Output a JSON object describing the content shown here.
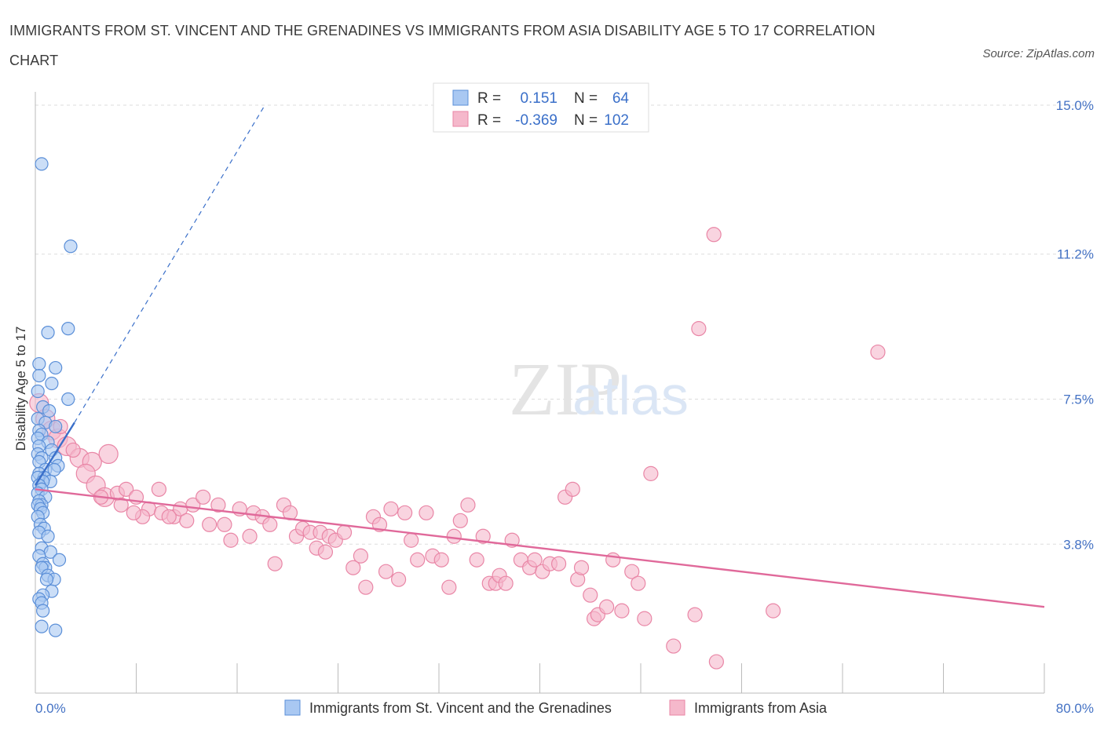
{
  "title": "IMMIGRANTS FROM ST. VINCENT AND THE GRENADINES VS IMMIGRANTS FROM ASIA DISABILITY AGE 5 TO 17 CORRELATION CHART",
  "source": "Source: ZipAtlas.com",
  "watermark": {
    "zip": "ZIP",
    "atlas": "atlas"
  },
  "colors": {
    "blue_fill": "#a9c8f2",
    "blue_stroke": "#5b8fd8",
    "blue_line": "#3a6fc9",
    "pink_fill": "#f5b8cb",
    "pink_stroke": "#e986a6",
    "pink_line": "#e0699a",
    "axis_label": "#4472c4",
    "grid": "#dddddd"
  },
  "legend": {
    "rows": [
      {
        "r_label": "R =",
        "r_value": "0.151",
        "n_label": "N =",
        "n_value": "64"
      },
      {
        "r_label": "R =",
        "r_value": "-0.369",
        "n_label": "N =",
        "n_value": "102"
      }
    ]
  },
  "bottom_legend": [
    "Immigrants from St. Vincent and the Grenadines",
    "Immigrants from Asia"
  ],
  "chart_data": {
    "type": "scatter",
    "ylabel": "Disability Age 5 to 17",
    "xlim": [
      0,
      80
    ],
    "ylim": [
      0,
      15
    ],
    "x_tick_labels": [
      "0.0%",
      "80.0%"
    ],
    "y_ticks": [
      3.8,
      7.5,
      11.2,
      15.0
    ],
    "y_tick_labels": [
      "3.8%",
      "7.5%",
      "11.2%",
      "15.0%"
    ],
    "grid": true,
    "legend_placement": "top-center",
    "series": [
      {
        "name": "Immigrants from St. Vincent and the Grenadines",
        "color": "blue",
        "trend": {
          "x0": 0,
          "y0": 5.3,
          "x1": 3.1,
          "y1": 6.9,
          "dashed_to": [
            18.2,
            15.0
          ]
        },
        "points": [
          [
            0.5,
            13.5
          ],
          [
            2.8,
            11.4
          ],
          [
            2.6,
            9.3
          ],
          [
            1.0,
            9.2
          ],
          [
            0.3,
            8.4
          ],
          [
            1.6,
            8.3
          ],
          [
            0.3,
            8.1
          ],
          [
            1.3,
            7.9
          ],
          [
            0.2,
            7.7
          ],
          [
            2.6,
            7.5
          ],
          [
            0.6,
            7.3
          ],
          [
            1.1,
            7.2
          ],
          [
            0.2,
            7.0
          ],
          [
            0.8,
            6.9
          ],
          [
            1.6,
            6.8
          ],
          [
            0.3,
            6.7
          ],
          [
            0.5,
            6.6
          ],
          [
            0.2,
            6.5
          ],
          [
            1.0,
            6.4
          ],
          [
            0.3,
            6.3
          ],
          [
            1.3,
            6.2
          ],
          [
            0.2,
            6.1
          ],
          [
            0.5,
            6.0
          ],
          [
            1.6,
            6.0
          ],
          [
            0.3,
            5.9
          ],
          [
            1.8,
            5.8
          ],
          [
            0.8,
            5.7
          ],
          [
            1.5,
            5.7
          ],
          [
            0.3,
            5.6
          ],
          [
            0.7,
            5.5
          ],
          [
            0.2,
            5.5
          ],
          [
            1.2,
            5.4
          ],
          [
            0.6,
            5.4
          ],
          [
            0.3,
            5.3
          ],
          [
            0.5,
            5.2
          ],
          [
            0.2,
            5.1
          ],
          [
            0.8,
            5.0
          ],
          [
            0.3,
            4.9
          ],
          [
            0.5,
            4.8
          ],
          [
            0.2,
            4.8
          ],
          [
            0.4,
            4.7
          ],
          [
            0.6,
            4.6
          ],
          [
            0.2,
            4.5
          ],
          [
            0.4,
            4.3
          ],
          [
            0.7,
            4.2
          ],
          [
            0.3,
            4.1
          ],
          [
            1.0,
            4.0
          ],
          [
            0.5,
            3.7
          ],
          [
            1.2,
            3.6
          ],
          [
            0.3,
            3.5
          ],
          [
            1.9,
            3.4
          ],
          [
            0.6,
            3.3
          ],
          [
            0.8,
            3.2
          ],
          [
            0.5,
            3.2
          ],
          [
            1.0,
            3.0
          ],
          [
            1.5,
            2.9
          ],
          [
            0.9,
            2.9
          ],
          [
            1.3,
            2.6
          ],
          [
            0.6,
            2.5
          ],
          [
            0.3,
            2.4
          ],
          [
            0.5,
            2.3
          ],
          [
            0.6,
            2.1
          ],
          [
            0.5,
            1.7
          ],
          [
            1.6,
            1.6
          ]
        ]
      },
      {
        "name": "Immigrants from Asia",
        "color": "pink",
        "trend": {
          "x0": 0,
          "y0": 5.2,
          "x1": 80,
          "y1": 2.2
        },
        "points": [
          [
            0.3,
            7.4
          ],
          [
            0.8,
            7.0
          ],
          [
            1.3,
            6.7
          ],
          [
            1.8,
            6.5
          ],
          [
            2.5,
            6.3
          ],
          [
            3.5,
            6.0
          ],
          [
            4.5,
            5.9
          ],
          [
            5.8,
            6.1
          ],
          [
            4.0,
            5.6
          ],
          [
            4.8,
            5.3
          ],
          [
            5.5,
            5.0
          ],
          [
            6.5,
            5.1
          ],
          [
            7.2,
            5.2
          ],
          [
            6.8,
            4.8
          ],
          [
            8.0,
            5.0
          ],
          [
            9.0,
            4.7
          ],
          [
            8.5,
            4.5
          ],
          [
            10.0,
            4.6
          ],
          [
            9.8,
            5.2
          ],
          [
            11.0,
            4.5
          ],
          [
            11.5,
            4.7
          ],
          [
            12.0,
            4.4
          ],
          [
            12.5,
            4.8
          ],
          [
            13.3,
            5.0
          ],
          [
            13.8,
            4.3
          ],
          [
            14.5,
            4.8
          ],
          [
            15.0,
            4.3
          ],
          [
            15.5,
            3.9
          ],
          [
            16.2,
            4.7
          ],
          [
            17.0,
            4.0
          ],
          [
            17.3,
            4.6
          ],
          [
            18.0,
            4.5
          ],
          [
            18.6,
            4.3
          ],
          [
            19.0,
            3.3
          ],
          [
            19.7,
            4.8
          ],
          [
            20.2,
            4.6
          ],
          [
            20.7,
            4.0
          ],
          [
            21.2,
            4.2
          ],
          [
            21.8,
            4.1
          ],
          [
            22.3,
            3.7
          ],
          [
            22.6,
            4.1
          ],
          [
            23.3,
            4.0
          ],
          [
            23.8,
            3.9
          ],
          [
            24.5,
            4.1
          ],
          [
            25.2,
            3.2
          ],
          [
            25.8,
            3.5
          ],
          [
            26.2,
            2.7
          ],
          [
            26.8,
            4.5
          ],
          [
            27.3,
            4.3
          ],
          [
            27.8,
            3.1
          ],
          [
            28.2,
            4.7
          ],
          [
            28.8,
            2.9
          ],
          [
            29.3,
            4.6
          ],
          [
            29.8,
            3.9
          ],
          [
            30.3,
            3.4
          ],
          [
            31.0,
            4.6
          ],
          [
            31.5,
            3.5
          ],
          [
            32.2,
            3.4
          ],
          [
            32.8,
            2.7
          ],
          [
            33.2,
            4.0
          ],
          [
            33.7,
            4.4
          ],
          [
            34.3,
            4.8
          ],
          [
            35.0,
            3.4
          ],
          [
            35.5,
            4.0
          ],
          [
            36.0,
            2.8
          ],
          [
            36.5,
            2.8
          ],
          [
            36.8,
            3.0
          ],
          [
            37.3,
            2.8
          ],
          [
            37.8,
            3.9
          ],
          [
            38.5,
            3.4
          ],
          [
            39.2,
            3.2
          ],
          [
            39.6,
            3.4
          ],
          [
            40.2,
            3.1
          ],
          [
            40.8,
            3.3
          ],
          [
            41.5,
            3.3
          ],
          [
            42.0,
            5.0
          ],
          [
            42.6,
            5.2
          ],
          [
            43.0,
            2.9
          ],
          [
            43.3,
            3.2
          ],
          [
            44.0,
            2.5
          ],
          [
            44.3,
            1.9
          ],
          [
            44.6,
            2.0
          ],
          [
            45.3,
            2.2
          ],
          [
            45.8,
            3.4
          ],
          [
            46.5,
            2.1
          ],
          [
            47.3,
            3.1
          ],
          [
            47.8,
            2.8
          ],
          [
            48.3,
            1.9
          ],
          [
            48.8,
            5.6
          ],
          [
            50.6,
            1.2
          ],
          [
            52.3,
            2.0
          ],
          [
            52.6,
            9.3
          ],
          [
            53.8,
            11.7
          ],
          [
            54.0,
            0.8
          ],
          [
            58.5,
            2.1
          ],
          [
            66.8,
            8.7
          ],
          [
            2.0,
            6.8
          ],
          [
            3.0,
            6.2
          ],
          [
            5.2,
            5.0
          ],
          [
            7.8,
            4.6
          ],
          [
            10.6,
            4.5
          ],
          [
            23.0,
            3.6
          ]
        ]
      }
    ]
  }
}
